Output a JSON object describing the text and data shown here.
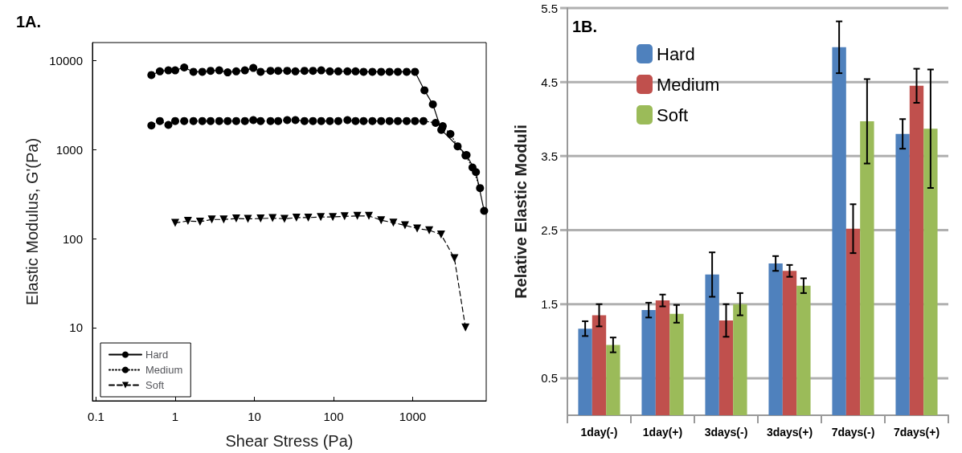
{
  "chart_data": [
    {
      "type": "line",
      "title": "1A.",
      "xlabel": "Shear Stress (Pa)",
      "ylabel": "Elastic Modulus, G'(Pa)",
      "log": "xy",
      "xlim": [
        0.09,
        8500
      ],
      "ylim": [
        1.5,
        16000
      ],
      "xticks": [
        0.1,
        1,
        10,
        100,
        1000
      ],
      "yticks": [
        10,
        100,
        1000,
        10000
      ],
      "grid": false,
      "legend": "bottom left",
      "series": [
        {
          "name": "Hard",
          "color": "#000000",
          "marker": "circle",
          "line_style": "solid",
          "x": [
            0.5,
            0.64,
            0.82,
            1.0,
            1.3,
            1.7,
            2.2,
            2.8,
            3.6,
            4.6,
            5.9,
            7.6,
            9.7,
            12,
            16,
            20,
            26,
            33,
            43,
            55,
            70,
            90,
            115,
            150,
            190,
            240,
            310,
            400,
            510,
            650,
            840,
            1070,
            1410,
            1800,
            2300,
            4800,
            6300,
            8000
          ],
          "values": [
            6900,
            7600,
            7800,
            7800,
            8400,
            7500,
            7500,
            7700,
            7800,
            7400,
            7600,
            7800,
            8300,
            7500,
            7700,
            7700,
            7700,
            7600,
            7700,
            7700,
            7800,
            7600,
            7600,
            7600,
            7600,
            7500,
            7500,
            7500,
            7500,
            7500,
            7500,
            7500,
            4650,
            3230,
            1670,
            870,
            560,
            205
          ]
        },
        {
          "name": "Medium",
          "color": "#000000",
          "marker": "circle",
          "line_style": "dotted",
          "x": [
            0.5,
            0.64,
            0.82,
            1.0,
            1.3,
            1.7,
            2.2,
            2.8,
            3.6,
            4.6,
            5.9,
            7.6,
            9.7,
            12,
            16,
            20,
            26,
            33,
            43,
            55,
            70,
            90,
            115,
            150,
            190,
            240,
            310,
            400,
            510,
            650,
            840,
            1070,
            1370,
            1950,
            2400,
            3000,
            3700,
            4650,
            5700,
            7100
          ],
          "values": [
            1870,
            2100,
            1900,
            2100,
            2100,
            2100,
            2100,
            2100,
            2100,
            2100,
            2100,
            2100,
            2150,
            2100,
            2100,
            2100,
            2150,
            2150,
            2100,
            2100,
            2100,
            2100,
            2100,
            2150,
            2100,
            2100,
            2100,
            2100,
            2100,
            2100,
            2100,
            2100,
            2100,
            2000,
            1840,
            1500,
            1090,
            860,
            630,
            370
          ]
        },
        {
          "name": "Soft",
          "color": "#000000",
          "marker": "triangle",
          "line_style": "dashed",
          "x": [
            1.0,
            1.45,
            2.06,
            2.9,
            4.1,
            5.9,
            8.3,
            12,
            17,
            24,
            34,
            48,
            69,
            98,
            138,
            200,
            280,
            400,
            570,
            800,
            1140,
            1620,
            2290,
            3370,
            4650
          ],
          "values": [
            150,
            158,
            155,
            164,
            164,
            168,
            167,
            168,
            170,
            167,
            172,
            172,
            175,
            175,
            178,
            180,
            180,
            161,
            151,
            141,
            130,
            124,
            111,
            60,
            10
          ]
        }
      ]
    },
    {
      "type": "bar",
      "title": "1B.",
      "ylabel": "Relative Elastic Moduli",
      "categories": [
        "1day(-)",
        "1day(+)",
        "3days(-)",
        "3days(+)",
        "7days(-)",
        "7days(+)"
      ],
      "ylim": [
        0,
        5.5
      ],
      "yticks": [
        0.5,
        1.5,
        2.5,
        3.5,
        4.5,
        5.5
      ],
      "grid": "y",
      "legend": "top left",
      "series": [
        {
          "name": "Hard",
          "color": "#4f81bd",
          "values": [
            1.17,
            1.42,
            1.9,
            2.05,
            4.97,
            3.8
          ],
          "errors": [
            0.1,
            0.1,
            0.3,
            0.1,
            0.35,
            0.2
          ]
        },
        {
          "name": "Medium",
          "color": "#c0504d",
          "values": [
            1.35,
            1.55,
            1.28,
            1.95,
            2.52,
            4.45
          ],
          "errors": [
            0.15,
            0.08,
            0.22,
            0.08,
            0.33,
            0.23
          ]
        },
        {
          "name": "Soft",
          "color": "#9bbb59",
          "values": [
            0.95,
            1.37,
            1.5,
            1.75,
            3.97,
            3.87
          ],
          "errors": [
            0.1,
            0.12,
            0.15,
            0.1,
            0.57,
            0.8
          ]
        }
      ]
    }
  ]
}
